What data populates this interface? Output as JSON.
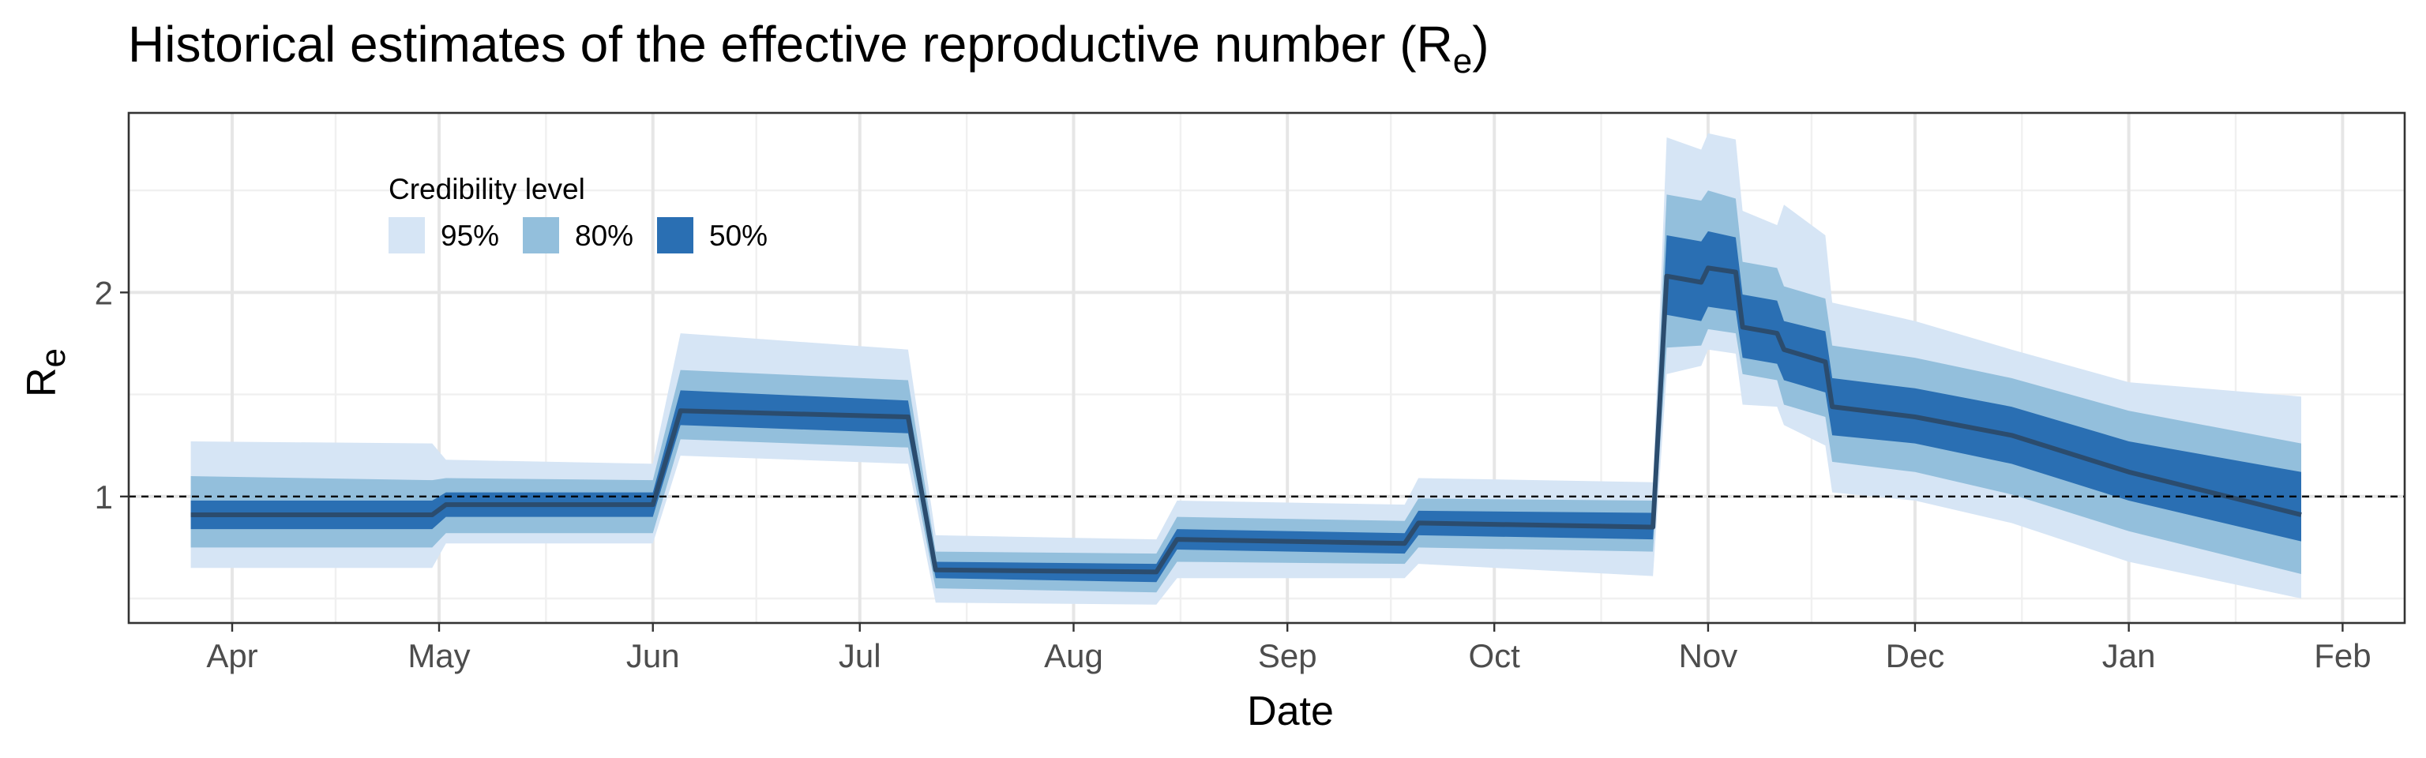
{
  "chart_data": {
    "type": "area",
    "title": "Historical estimates of the effective reproductive number (R",
    "title_subscript": "e",
    "title_suffix": ")",
    "xlabel": "Date",
    "ylabel": "R",
    "ylabel_subscript": "e",
    "x_ticks": [
      {
        "date": "2020-04-01",
        "label": "Apr"
      },
      {
        "date": "2020-05-01",
        "label": "May"
      },
      {
        "date": "2020-06-01",
        "label": "Jun"
      },
      {
        "date": "2020-07-01",
        "label": "Jul"
      },
      {
        "date": "2020-08-01",
        "label": "Aug"
      },
      {
        "date": "2020-09-01",
        "label": "Sep"
      },
      {
        "date": "2020-10-01",
        "label": "Oct"
      },
      {
        "date": "2020-11-01",
        "label": "Nov"
      },
      {
        "date": "2020-12-01",
        "label": "Dec"
      },
      {
        "date": "2021-01-01",
        "label": "Jan"
      },
      {
        "date": "2021-02-01",
        "label": "Feb"
      }
    ],
    "y_ticks": [
      1,
      2
    ],
    "xlim": [
      "2020-03-17",
      "2021-02-10"
    ],
    "ylim": [
      0.38,
      2.88
    ],
    "grid": true,
    "reference_line": {
      "y": 1,
      "style": "dashed"
    },
    "legend": {
      "title": "Credibility level",
      "placement": "top-left",
      "entries": [
        {
          "label": "95%",
          "color": "#d6e5f5"
        },
        {
          "label": "80%",
          "color": "#93bfdc"
        },
        {
          "label": "50%",
          "color": "#2a6fb3"
        }
      ]
    },
    "median_color": "#2b4c6e",
    "data": [
      {
        "x": "2020-03-26",
        "median": 0.91,
        "lo50": 0.84,
        "hi50": 0.98,
        "lo80": 0.75,
        "hi80": 1.1,
        "lo95": 0.65,
        "hi95": 1.27
      },
      {
        "x": "2020-04-30",
        "median": 0.91,
        "lo50": 0.84,
        "hi50": 0.98,
        "lo80": 0.75,
        "hi80": 1.08,
        "lo95": 0.65,
        "hi95": 1.26
      },
      {
        "x": "2020-05-02",
        "median": 0.96,
        "lo50": 0.9,
        "hi50": 1.02,
        "lo80": 0.82,
        "hi80": 1.09,
        "lo95": 0.77,
        "hi95": 1.18
      },
      {
        "x": "2020-06-01",
        "median": 0.96,
        "lo50": 0.9,
        "hi50": 1.02,
        "lo80": 0.82,
        "hi80": 1.08,
        "lo95": 0.77,
        "hi95": 1.16
      },
      {
        "x": "2020-06-05",
        "median": 1.42,
        "lo50": 1.35,
        "hi50": 1.52,
        "lo80": 1.28,
        "hi80": 1.62,
        "lo95": 1.2,
        "hi95": 1.8
      },
      {
        "x": "2020-07-08",
        "median": 1.39,
        "lo50": 1.31,
        "hi50": 1.47,
        "lo80": 1.24,
        "hi80": 1.57,
        "lo95": 1.16,
        "hi95": 1.72
      },
      {
        "x": "2020-07-12",
        "median": 0.64,
        "lo50": 0.6,
        "hi50": 0.68,
        "lo80": 0.55,
        "hi80": 0.73,
        "lo95": 0.48,
        "hi95": 0.81
      },
      {
        "x": "2020-08-13",
        "median": 0.63,
        "lo50": 0.58,
        "hi50": 0.67,
        "lo80": 0.53,
        "hi80": 0.72,
        "lo95": 0.47,
        "hi95": 0.79
      },
      {
        "x": "2020-08-16",
        "median": 0.79,
        "lo50": 0.74,
        "hi50": 0.84,
        "lo80": 0.68,
        "hi80": 0.9,
        "lo95": 0.6,
        "hi95": 0.98
      },
      {
        "x": "2020-09-18",
        "median": 0.77,
        "lo50": 0.72,
        "hi50": 0.82,
        "lo80": 0.67,
        "hi80": 0.88,
        "lo95": 0.6,
        "hi95": 0.96
      },
      {
        "x": "2020-09-20",
        "median": 0.87,
        "lo50": 0.81,
        "hi50": 0.93,
        "lo80": 0.75,
        "hi80": 0.99,
        "lo95": 0.67,
        "hi95": 1.09
      },
      {
        "x": "2020-10-24",
        "median": 0.85,
        "lo50": 0.79,
        "hi50": 0.92,
        "lo80": 0.73,
        "hi80": 0.98,
        "lo95": 0.61,
        "hi95": 1.07
      },
      {
        "x": "2020-10-26",
        "median": 2.08,
        "lo50": 1.89,
        "hi50": 2.28,
        "lo80": 1.73,
        "hi80": 2.48,
        "lo95": 1.6,
        "hi95": 2.76
      },
      {
        "x": "2020-10-31",
        "median": 2.05,
        "lo50": 1.86,
        "hi50": 2.25,
        "lo80": 1.74,
        "hi80": 2.45,
        "lo95": 1.64,
        "hi95": 2.7
      },
      {
        "x": "2020-11-01",
        "median": 2.12,
        "lo50": 1.93,
        "hi50": 2.3,
        "lo80": 1.82,
        "hi80": 2.5,
        "lo95": 1.72,
        "hi95": 2.78
      },
      {
        "x": "2020-11-05",
        "median": 2.1,
        "lo50": 1.91,
        "hi50": 2.27,
        "lo80": 1.8,
        "hi80": 2.46,
        "lo95": 1.7,
        "hi95": 2.75
      },
      {
        "x": "2020-11-06",
        "median": 1.83,
        "lo50": 1.68,
        "hi50": 1.99,
        "lo80": 1.6,
        "hi80": 2.15,
        "lo95": 1.45,
        "hi95": 2.4
      },
      {
        "x": "2020-11-11",
        "median": 1.8,
        "lo50": 1.65,
        "hi50": 1.96,
        "lo80": 1.57,
        "hi80": 2.12,
        "lo95": 1.44,
        "hi95": 2.33
      },
      {
        "x": "2020-11-12",
        "median": 1.72,
        "lo50": 1.57,
        "hi50": 1.86,
        "lo80": 1.45,
        "hi80": 2.03,
        "lo95": 1.35,
        "hi95": 2.43
      },
      {
        "x": "2020-11-18",
        "median": 1.66,
        "lo50": 1.51,
        "hi50": 1.81,
        "lo80": 1.39,
        "hi80": 1.97,
        "lo95": 1.25,
        "hi95": 2.28
      },
      {
        "x": "2020-11-19",
        "median": 1.44,
        "lo50": 1.3,
        "hi50": 1.58,
        "lo80": 1.17,
        "hi80": 1.74,
        "lo95": 1.02,
        "hi95": 1.95
      },
      {
        "x": "2020-12-01",
        "median": 1.39,
        "lo50": 1.26,
        "hi50": 1.53,
        "lo80": 1.12,
        "hi80": 1.68,
        "lo95": 0.98,
        "hi95": 1.86
      },
      {
        "x": "2020-12-15",
        "median": 1.3,
        "lo50": 1.16,
        "hi50": 1.44,
        "lo80": 1.01,
        "hi80": 1.58,
        "lo95": 0.87,
        "hi95": 1.72
      },
      {
        "x": "2021-01-01",
        "median": 1.12,
        "lo50": 0.98,
        "hi50": 1.27,
        "lo80": 0.83,
        "hi80": 1.42,
        "lo95": 0.68,
        "hi95": 1.56
      },
      {
        "x": "2021-01-26",
        "median": 0.91,
        "lo50": 0.78,
        "hi50": 1.12,
        "lo80": 0.62,
        "hi80": 1.26,
        "lo95": 0.5,
        "hi95": 1.49
      }
    ]
  }
}
